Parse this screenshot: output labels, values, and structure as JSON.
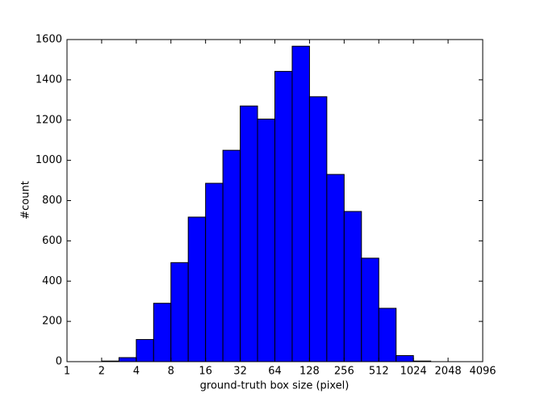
{
  "chart_data": {
    "type": "histogram",
    "xlabel": "ground-truth box size (pixel)",
    "ylabel": "#count",
    "bins": [
      1,
      1.414,
      2,
      2.828,
      4,
      5.657,
      8,
      11.31,
      16,
      22.63,
      32,
      45.25,
      64,
      90.51,
      128,
      181.0,
      256,
      362.0,
      512,
      724.1,
      1024,
      1448,
      2048,
      2896,
      4096
    ],
    "values": [
      0,
      0,
      3,
      20,
      110,
      290,
      492,
      718,
      886,
      1050,
      1270,
      1205,
      1442,
      1567,
      1316,
      930,
      746,
      514,
      265,
      30,
      3,
      0,
      0,
      0
    ],
    "color": "#0000ff",
    "xscale": "log2",
    "xlim": [
      1,
      4096
    ],
    "xticks": [
      1,
      2,
      4,
      8,
      16,
      32,
      64,
      128,
      256,
      512,
      1024,
      2048,
      4096
    ],
    "ylim": [
      0,
      1600
    ],
    "yticks": [
      0,
      200,
      400,
      600,
      800,
      1000,
      1200,
      1400,
      1600
    ]
  }
}
